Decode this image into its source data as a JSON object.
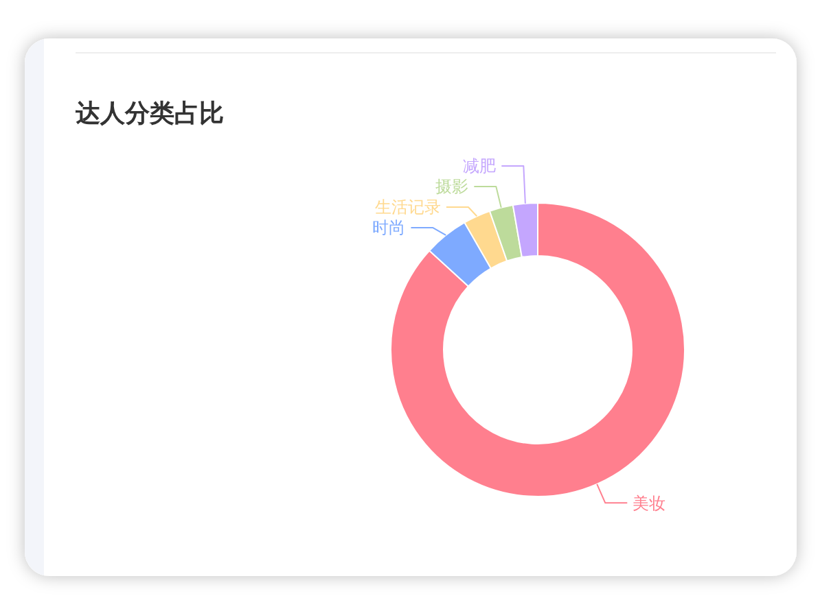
{
  "chart_data": {
    "type": "donut",
    "title": "达人分类占比",
    "categories": [
      "美妆",
      "时尚",
      "生活记录",
      "摄影",
      "减肥"
    ],
    "values": [
      86.8,
      4.9,
      3.0,
      2.6,
      2.7
    ],
    "colors": [
      "#ff7f8e",
      "#7eaaff",
      "#ffd98f",
      "#bddb9b",
      "#c4a6fe"
    ]
  }
}
